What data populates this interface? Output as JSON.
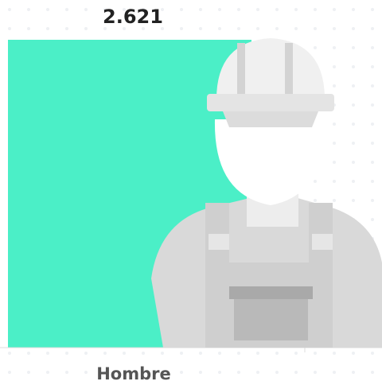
{
  "chart_data": {
    "type": "bar",
    "categories": [
      "Hombre"
    ],
    "values": [
      2621
    ],
    "value_labels": [
      "2.621"
    ],
    "color": "#4befc7"
  }
}
